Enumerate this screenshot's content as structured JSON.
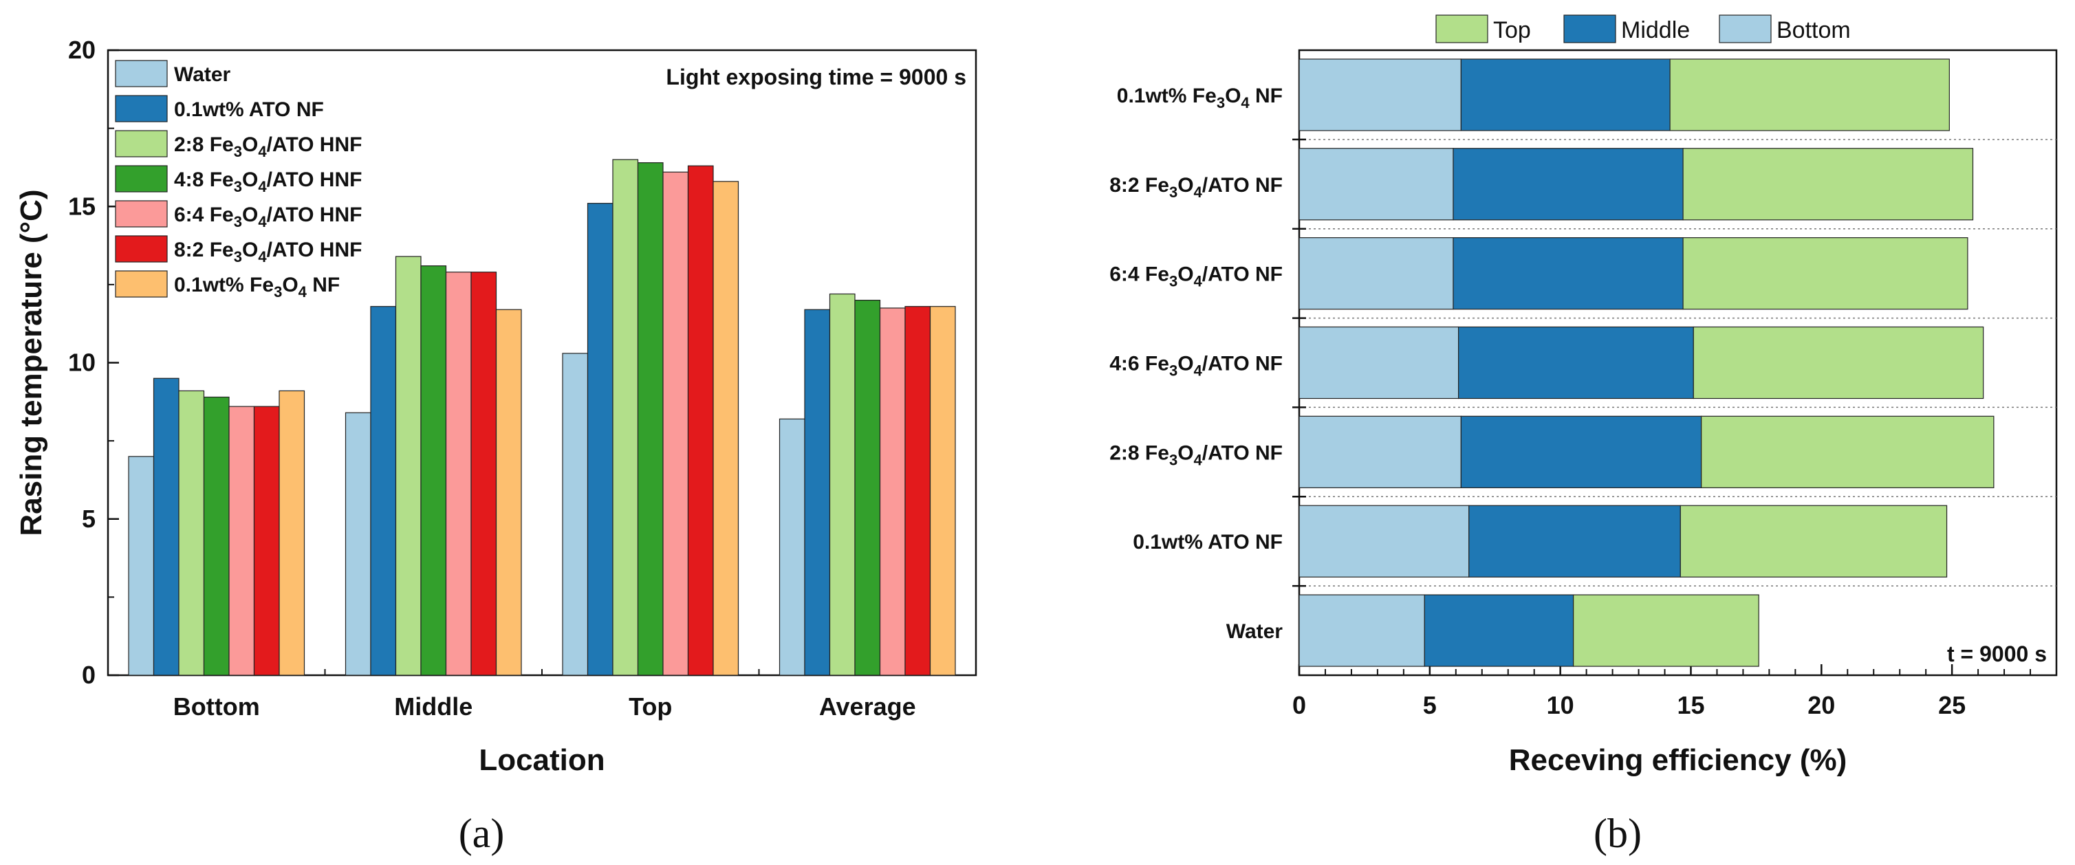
{
  "colors": {
    "water": "#a6cee3",
    "ato": "#1f78b4",
    "hnf28": "#b2df8a",
    "hnf48": "#33a02c",
    "hnf64": "#fb9a99",
    "hnf82": "#e31a1c",
    "fe3o4": "#fdbf6f",
    "bottom": "#a6cee3",
    "middle": "#1f78b4",
    "top": "#b2df8a"
  },
  "chart_data": [
    {
      "panel": "(a)",
      "type": "bar",
      "title": "",
      "xlabel": "Location",
      "ylabel": "Rasing temperature (°C)",
      "ylim": [
        0,
        20
      ],
      "yticks": [
        "0",
        "5",
        "10",
        "15",
        "20"
      ],
      "categories": [
        "Bottom",
        "Middle",
        "Top",
        "Average"
      ],
      "annotation": "Light exposing time = 9000 s",
      "legend_position": "top-left",
      "series": [
        {
          "name": "Water",
          "label_main": "Water",
          "label_sub1": "",
          "label_mid": "",
          "label_sub2": "",
          "label_tail": "",
          "color_key": "water",
          "values": [
            7.0,
            8.4,
            10.3,
            8.2
          ]
        },
        {
          "name": "0.1wt% ATO NF",
          "label_main": "0.1wt% ATO NF",
          "label_sub1": "",
          "label_mid": "",
          "label_sub2": "",
          "label_tail": "",
          "color_key": "ato",
          "values": [
            9.5,
            11.8,
            15.1,
            11.7
          ]
        },
        {
          "name": "2:8 Fe3O4/ATO HNF",
          "label_main": "2:8 Fe",
          "label_sub1": "3",
          "label_mid": "O",
          "label_sub2": "4",
          "label_tail": "/ATO HNF",
          "color_key": "hnf28",
          "values": [
            9.1,
            13.4,
            16.5,
            12.2
          ]
        },
        {
          "name": "4:8 Fe3O4/ATO HNF",
          "label_main": "4:8 Fe",
          "label_sub1": "3",
          "label_mid": "O",
          "label_sub2": "4",
          "label_tail": "/ATO HNF",
          "color_key": "hnf48",
          "values": [
            8.9,
            13.1,
            16.4,
            12.0
          ]
        },
        {
          "name": "6:4 Fe3O4/ATO HNF",
          "label_main": "6:4 Fe",
          "label_sub1": "3",
          "label_mid": "O",
          "label_sub2": "4",
          "label_tail": "/ATO HNF",
          "color_key": "hnf64",
          "values": [
            8.6,
            12.9,
            16.1,
            11.75
          ]
        },
        {
          "name": "8:2 Fe3O4/ATO HNF",
          "label_main": "8:2 Fe",
          "label_sub1": "3",
          "label_mid": "O",
          "label_sub2": "4",
          "label_tail": "/ATO HNF",
          "color_key": "hnf82",
          "values": [
            8.6,
            12.9,
            16.3,
            11.8
          ]
        },
        {
          "name": "0.1wt% Fe3O4 NF",
          "label_main": "0.1wt% Fe",
          "label_sub1": "3",
          "label_mid": "O",
          "label_sub2": "4",
          "label_tail": " NF",
          "color_key": "fe3o4",
          "values": [
            9.1,
            11.7,
            15.8,
            11.8
          ]
        }
      ]
    },
    {
      "panel": "(b)",
      "type": "bar",
      "orientation": "horizontal-stacked",
      "title": "",
      "xlabel": "Receving efficiency (%)",
      "ylabel": "",
      "xlim": [
        0,
        29
      ],
      "xticks": [
        "0",
        "5",
        "10",
        "15",
        "20",
        "25"
      ],
      "annotation": "t = 9000 s",
      "legend_position": "top",
      "legend": [
        {
          "name": "Top",
          "color_key": "top"
        },
        {
          "name": "Middle",
          "color_key": "middle"
        },
        {
          "name": "Bottom",
          "color_key": "bottom"
        }
      ],
      "categories": [
        {
          "name": "Water",
          "main": "Water",
          "sub1": "",
          "mid": "",
          "sub2": "",
          "tail": ""
        },
        {
          "name": "0.1wt% ATO NF",
          "main": "0.1wt% ATO NF",
          "sub1": "",
          "mid": "",
          "sub2": "",
          "tail": ""
        },
        {
          "name": "2:8 Fe3O4/ATO NF",
          "main": "2:8 Fe",
          "sub1": "3",
          "mid": "O",
          "sub2": "4",
          "tail": "/ATO NF"
        },
        {
          "name": "4:6 Fe3O4/ATO NF",
          "main": "4:6 Fe",
          "sub1": "3",
          "mid": "O",
          "sub2": "4",
          "tail": "/ATO NF"
        },
        {
          "name": "6:4 Fe3O4/ATO NF",
          "main": "6:4 Fe",
          "sub1": "3",
          "mid": "O",
          "sub2": "4",
          "tail": "/ATO NF"
        },
        {
          "name": "8:2 Fe3O4/ATO NF",
          "main": "8:2 Fe",
          "sub1": "3",
          "mid": "O",
          "sub2": "4",
          "tail": "/ATO NF"
        },
        {
          "name": "0.1wt% Fe3O4 NF",
          "main": "0.1wt% Fe",
          "sub1": "3",
          "mid": "O",
          "sub2": "4",
          "tail": " NF"
        }
      ],
      "series": [
        {
          "name": "Bottom",
          "color_key": "bottom",
          "values": [
            4.8,
            6.5,
            6.2,
            6.1,
            5.9,
            5.9,
            6.2
          ]
        },
        {
          "name": "Middle",
          "color_key": "middle",
          "values": [
            5.7,
            8.1,
            9.2,
            9.0,
            8.8,
            8.8,
            8.0
          ]
        },
        {
          "name": "Top",
          "color_key": "top",
          "values": [
            7.1,
            10.2,
            11.2,
            11.1,
            10.9,
            11.1,
            10.7
          ]
        }
      ]
    }
  ],
  "captions": [
    "(a)",
    "(b)"
  ]
}
